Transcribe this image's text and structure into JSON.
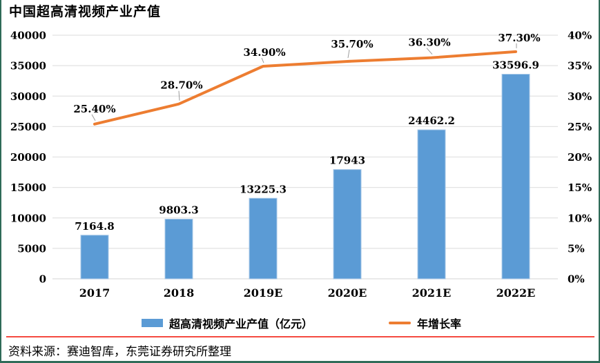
{
  "page": {
    "title": "中国超高清视频产业产值",
    "source_note": "资料来源：赛迪智库，东莞证券研究所整理"
  },
  "colors": {
    "bar": "#5b9bd5",
    "bar_edge": "#a9c9e8",
    "line": "#ed7d31",
    "grid": "#e2e2e2",
    "leader": "#9b9b9b",
    "text": "#000000",
    "separator": "#f4493f",
    "border": "#2f6b58"
  },
  "chart_data": {
    "type": "bar+line combo",
    "title": "中国超高清视频产业产值",
    "categories": [
      "2017",
      "2018",
      "2019E",
      "2020E",
      "2021E",
      "2022E"
    ],
    "series": [
      {
        "name": "超高清视频产业产值（亿元）",
        "type": "bar",
        "axis": "left",
        "color": "#5b9bd5",
        "values": [
          7164.8,
          9803.3,
          13225.3,
          17943,
          24462.2,
          33596.9
        ],
        "labels": [
          "7164.8",
          "9803.3",
          "13225.3",
          "17943",
          "24462.2",
          "33596.9"
        ]
      },
      {
        "name": "年增长率",
        "type": "line",
        "axis": "right",
        "color": "#ed7d31",
        "values": [
          25.4,
          28.7,
          34.9,
          35.7,
          36.3,
          37.3
        ],
        "labels": [
          "25.40%",
          "28.70%",
          "34.90%",
          "35.70%",
          "36.30%",
          "37.30%"
        ]
      }
    ],
    "left_axis": {
      "min": 0,
      "max": 40000,
      "step": 5000,
      "tick_labels": [
        "40000",
        "35000",
        "30000",
        "25000",
        "20000",
        "15000",
        "10000",
        "5000",
        "0"
      ]
    },
    "right_axis": {
      "min": 0,
      "max": 40,
      "step": 5,
      "tick_labels": [
        "40%",
        "35%",
        "30%",
        "25%",
        "20%",
        "15%",
        "10%",
        "5%",
        "0%"
      ]
    },
    "grid": true,
    "legend_position": "bottom"
  },
  "legend": {
    "bar_label": "超高清视频产业产值（亿元）",
    "line_label": "年增长率"
  }
}
